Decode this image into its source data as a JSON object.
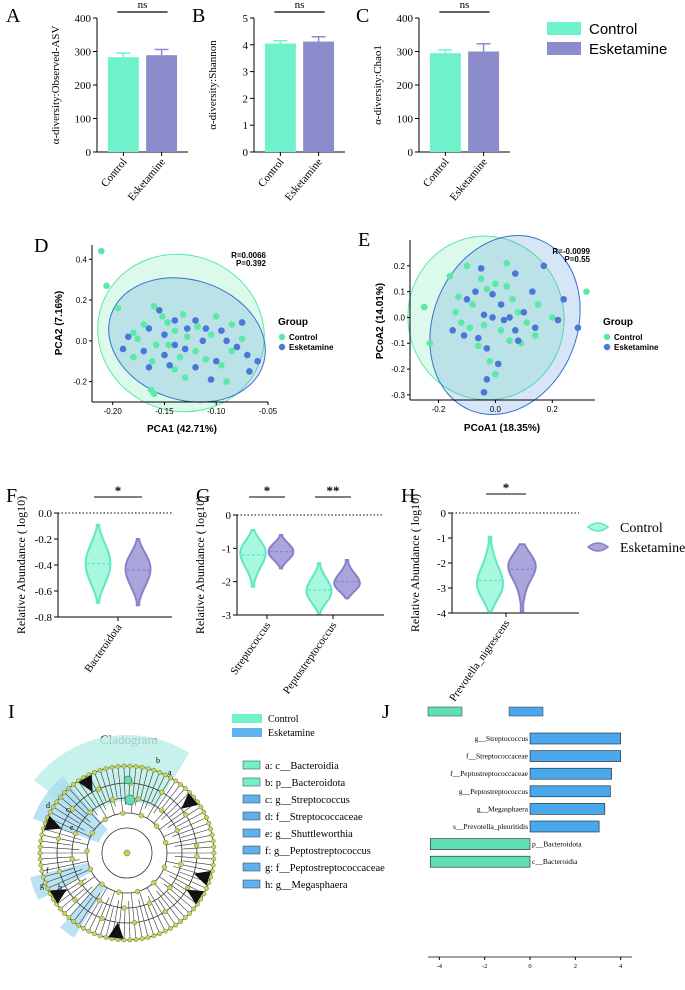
{
  "colors": {
    "control": "#6ff2cc",
    "control_light": "#a8f7df",
    "esketamine": "#8c8ccc",
    "esketamine_light": "#a9a6dc",
    "pca_control": "#5ce8a6",
    "pca_esketamine": "#4a78d8",
    "lda_control": "#5fe0b0",
    "lda_esketamine": "#4aa7ee",
    "clado_bg": "#bdeee8",
    "clado_node": "#c8d64b"
  },
  "legend_top": {
    "items": [
      "Control",
      "Esketamine"
    ]
  },
  "legend_violin": {
    "items": [
      "Control",
      "Esketamine"
    ]
  },
  "panels": {
    "A": "A",
    "B": "B",
    "C": "C",
    "D": "D",
    "E": "E",
    "F": "F",
    "G": "G",
    "H": "H",
    "I": "I",
    "J": "J"
  },
  "chart_data": [
    {
      "id": "A",
      "type": "bar",
      "ylabel": "α-diversity:Observed-ASV",
      "categories": [
        "Control",
        "Esketamine"
      ],
      "values": [
        283,
        289
      ],
      "errors": [
        12,
        17
      ],
      "ylim": [
        0,
        400
      ],
      "yticks": [
        "0",
        "100",
        "200",
        "300",
        "400"
      ],
      "significance": "ns"
    },
    {
      "id": "B",
      "type": "bar",
      "ylabel": "α-diversity:Shannon",
      "categories": [
        "Control",
        "Esketamine"
      ],
      "values": [
        4.05,
        4.12
      ],
      "errors": [
        0.1,
        0.18
      ],
      "ylim": [
        0,
        5
      ],
      "yticks": [
        "0",
        "1",
        "2",
        "3",
        "4",
        "5"
      ],
      "significance": "ns"
    },
    {
      "id": "C",
      "type": "bar",
      "ylabel": "α-diversity:Chao1",
      "categories": [
        "Control",
        "Esketamine"
      ],
      "values": [
        295,
        300
      ],
      "errors": [
        10,
        23
      ],
      "ylim": [
        0,
        400
      ],
      "yticks": [
        "0",
        "100",
        "200",
        "300",
        "400"
      ],
      "significance": "ns"
    },
    {
      "id": "D",
      "type": "scatter",
      "xlabel": "PCA1 (42.71%)",
      "ylabel": "PCA2 (7.16%)",
      "xlim": [
        -0.22,
        -0.05
      ],
      "ylim": [
        -0.3,
        0.47
      ],
      "xticks": [
        -0.2,
        -0.15,
        -0.1,
        -0.05
      ],
      "yticks": [
        -0.2,
        0,
        0.2,
        0.4
      ],
      "xtick_labels": [
        "-0.20",
        "-0.15",
        "-0.10",
        "-0.05"
      ],
      "ytick_labels": [
        "-0.2",
        "0.0",
        "0.2",
        "0.4"
      ],
      "stat_R": "R=0.0066",
      "stat_P": "P=0.392",
      "legend_title": "Group",
      "legend_items": [
        "Control",
        "Esketamine"
      ],
      "series": [
        {
          "name": "Control",
          "points": [
            [
              -0.211,
              0.44
            ],
            [
              -0.206,
              0.27
            ],
            [
              -0.195,
              0.16
            ],
            [
              -0.16,
              0.17
            ],
            [
              -0.152,
              0.12
            ],
            [
              -0.17,
              0.08
            ],
            [
              -0.18,
              0.04
            ],
            [
              -0.14,
              0.05
            ],
            [
              -0.147,
              0.09
            ],
            [
              -0.132,
              0.13
            ],
            [
              -0.128,
              0.02
            ],
            [
              -0.146,
              -0.02
            ],
            [
              -0.158,
              -0.02
            ],
            [
              -0.18,
              -0.08
            ],
            [
              -0.162,
              -0.1
            ],
            [
              -0.12,
              -0.05
            ],
            [
              -0.11,
              -0.09
            ],
            [
              -0.095,
              -0.12
            ],
            [
              -0.085,
              -0.05
            ],
            [
              -0.105,
              0.03
            ],
            [
              -0.118,
              0.07
            ],
            [
              -0.075,
              0.01
            ],
            [
              -0.085,
              0.08
            ],
            [
              -0.1,
              0.12
            ],
            [
              -0.09,
              -0.2
            ],
            [
              -0.13,
              -0.18
            ],
            [
              -0.16,
              -0.26
            ],
            [
              -0.163,
              -0.24
            ],
            [
              -0.14,
              -0.14
            ],
            [
              -0.176,
              0.01
            ],
            [
              -0.135,
              -0.08
            ]
          ]
        },
        {
          "name": "Esketamine",
          "points": [
            [
              -0.155,
              0.15
            ],
            [
              -0.14,
              0.1
            ],
            [
              -0.165,
              0.06
            ],
            [
              -0.15,
              0.03
            ],
            [
              -0.128,
              0.06
            ],
            [
              -0.185,
              0.02
            ],
            [
              -0.19,
              -0.04
            ],
            [
              -0.17,
              -0.05
            ],
            [
              -0.15,
              -0.07
            ],
            [
              -0.13,
              -0.04
            ],
            [
              -0.113,
              0.0
            ],
            [
              -0.09,
              0.0
            ],
            [
              -0.08,
              -0.03
            ],
            [
              -0.07,
              -0.07
            ],
            [
              -0.1,
              -0.1
            ],
            [
              -0.12,
              -0.13
            ],
            [
              -0.145,
              -0.12
            ],
            [
              -0.165,
              -0.13
            ],
            [
              -0.11,
              0.06
            ],
            [
              -0.095,
              0.05
            ],
            [
              -0.075,
              0.09
            ],
            [
              -0.06,
              -0.1
            ],
            [
              -0.068,
              -0.15
            ],
            [
              -0.105,
              -0.19
            ],
            [
              -0.12,
              0.1
            ],
            [
              -0.14,
              -0.02
            ]
          ]
        }
      ]
    },
    {
      "id": "E",
      "type": "scatter",
      "xlabel": "PCoA1 (18.35%)",
      "ylabel": "PCoA2 (14.01%)",
      "xlim": [
        -0.3,
        0.35
      ],
      "ylim": [
        -0.32,
        0.3
      ],
      "xticks": [
        -0.2,
        0.0,
        0.2
      ],
      "yticks": [
        -0.3,
        -0.2,
        -0.1,
        0.0,
        0.1,
        0.2
      ],
      "xtick_labels": [
        "-0.2",
        "0.0",
        "0.2"
      ],
      "ytick_labels": [
        "-0.3",
        "-0.2",
        "-0.1",
        "0.0",
        "0.1",
        "0.2"
      ],
      "stat_R": "R=-0.0099",
      "stat_P": "P=0.55",
      "legend_title": "Group",
      "legend_items": [
        "Control",
        "Esketamine"
      ],
      "series": [
        {
          "name": "Control",
          "points": [
            [
              -0.25,
              0.04
            ],
            [
              -0.23,
              -0.1
            ],
            [
              -0.16,
              0.16
            ],
            [
              -0.13,
              0.08
            ],
            [
              -0.1,
              0.2
            ],
            [
              -0.08,
              0.05
            ],
            [
              -0.12,
              -0.02
            ],
            [
              -0.05,
              0.15
            ],
            [
              -0.03,
              0.11
            ],
            [
              0.0,
              0.13
            ],
            [
              0.04,
              0.12
            ],
            [
              0.06,
              0.07
            ],
            [
              0.08,
              0.02
            ],
            [
              0.11,
              -0.02
            ],
            [
              0.02,
              -0.05
            ],
            [
              -0.04,
              -0.03
            ],
            [
              -0.09,
              -0.04
            ],
            [
              -0.06,
              -0.11
            ],
            [
              -0.02,
              -0.17
            ],
            [
              0.05,
              -0.09
            ],
            [
              0.09,
              -0.1
            ],
            [
              0.14,
              -0.07
            ],
            [
              0.15,
              0.05
            ],
            [
              0.2,
              0.0
            ],
            [
              0.32,
              0.1
            ],
            [
              -0.14,
              0.02
            ],
            [
              0.0,
              -0.22
            ],
            [
              0.04,
              0.21
            ]
          ]
        },
        {
          "name": "Esketamine",
          "points": [
            [
              -0.05,
              0.19
            ],
            [
              -0.07,
              0.1
            ],
            [
              -0.1,
              0.07
            ],
            [
              -0.01,
              0.09
            ],
            [
              0.07,
              0.17
            ],
            [
              0.02,
              0.05
            ],
            [
              -0.04,
              0.01
            ],
            [
              0.1,
              0.02
            ],
            [
              0.13,
              0.1
            ],
            [
              0.17,
              0.2
            ],
            [
              0.24,
              0.07
            ],
            [
              0.22,
              -0.01
            ],
            [
              0.29,
              -0.04
            ],
            [
              0.14,
              -0.04
            ],
            [
              0.07,
              -0.05
            ],
            [
              0.03,
              -0.01
            ],
            [
              -0.06,
              -0.08
            ],
            [
              -0.15,
              -0.05
            ],
            [
              -0.11,
              -0.07
            ],
            [
              -0.03,
              -0.12
            ],
            [
              0.01,
              -0.18
            ],
            [
              -0.03,
              -0.24
            ],
            [
              -0.04,
              -0.29
            ],
            [
              0.05,
              0.0
            ],
            [
              -0.01,
              0.0
            ],
            [
              0.08,
              -0.09
            ]
          ]
        }
      ]
    },
    {
      "id": "F",
      "type": "violin",
      "ylabel": "Relative Abundance ( log10)",
      "categories": [
        "Bacteroidota"
      ],
      "ylim": [
        -0.8,
        0.0
      ],
      "yticks": [
        "0.0",
        "-0.2",
        "-0.4",
        "-0.6",
        "-0.8"
      ],
      "series": [
        {
          "name": "Control",
          "median": [
            -0.39
          ],
          "range": [
            [
              -0.69,
              -0.09
            ]
          ]
        },
        {
          "name": "Esketamine",
          "median": [
            -0.44
          ],
          "range": [
            [
              -0.71,
              -0.2
            ]
          ]
        }
      ],
      "significance": [
        "*"
      ]
    },
    {
      "id": "G",
      "type": "violin",
      "ylabel": "Relative Abundance ( log10)",
      "categories": [
        "Streptococcus",
        "Peptostreptococcus"
      ],
      "ylim": [
        -3,
        0
      ],
      "yticks": [
        "0",
        "-1",
        "-2",
        "-3"
      ],
      "series": [
        {
          "name": "Control",
          "median": [
            -1.2,
            -2.25
          ],
          "range": [
            [
              -2.15,
              -0.45
            ],
            [
              -2.95,
              -1.45
            ]
          ]
        },
        {
          "name": "Esketamine",
          "median": [
            -1.1,
            -2.0
          ],
          "range": [
            [
              -1.6,
              -0.6
            ],
            [
              -2.5,
              -1.35
            ]
          ]
        }
      ],
      "significance": [
        "*",
        "**"
      ]
    },
    {
      "id": "H",
      "type": "violin",
      "ylabel": "Relative Abundance ( log10)",
      "categories": [
        "Prevotella_nigrescens"
      ],
      "ylim": [
        -4,
        0
      ],
      "yticks": [
        "0",
        "-1",
        "-2",
        "-3",
        "-4"
      ],
      "series": [
        {
          "name": "Control",
          "median": [
            -2.7
          ],
          "range": [
            [
              -3.95,
              -0.95
            ]
          ]
        },
        {
          "name": "Esketamine",
          "median": [
            -2.25
          ],
          "range": [
            [
              -3.95,
              -1.25
            ]
          ]
        }
      ],
      "significance": [
        "*"
      ]
    },
    {
      "id": "J",
      "type": "bar",
      "orientation": "horizontal",
      "xlabel": "LDA SCORE (log 10)",
      "legend_items": [
        "Control",
        "Esketamine"
      ],
      "xlim": [
        -4.5,
        4.5
      ],
      "xticks": [
        "-4",
        "-2",
        "0",
        "2",
        "4"
      ],
      "categories": [
        "g__Streptococcus",
        "f__Streptococcaceae",
        "f__Peptostreptococcaceae",
        "g__Peptostreptococcus",
        "g__Megasphaera",
        "s__Prevotella_pleuritidis",
        "p__Bacteroidota",
        "c__Bacteroidia"
      ],
      "values": [
        4.0,
        4.0,
        3.6,
        3.55,
        3.3,
        3.05,
        -4.4,
        -4.4
      ],
      "groups": [
        "Esketamine",
        "Esketamine",
        "Esketamine",
        "Esketamine",
        "Esketamine",
        "Esketamine",
        "Control",
        "Control"
      ]
    }
  ],
  "cladogram": {
    "title": "Cladogram",
    "legend_items": [
      "Control",
      "Esketamine"
    ],
    "node_labels": [
      "a",
      "b",
      "c",
      "d",
      "e",
      "f",
      "g",
      "h"
    ],
    "taxa": [
      {
        "text": "a: c__Bacteroidia",
        "group": "Control"
      },
      {
        "text": "b: p__Bacteroidota",
        "group": "Control"
      },
      {
        "text": "c: g__Streptococcus",
        "group": "Esketamine"
      },
      {
        "text": "d: f__Streptococcaceae",
        "group": "Esketamine"
      },
      {
        "text": "e: g__Shuttleworthia",
        "group": "Esketamine"
      },
      {
        "text": "f: g__Peptostreptococcus",
        "group": "Esketamine"
      },
      {
        "text": "g: f__Peptostreptococcaceae",
        "group": "Esketamine"
      },
      {
        "text": "h: g__Megasphaera",
        "group": "Esketamine"
      }
    ]
  }
}
